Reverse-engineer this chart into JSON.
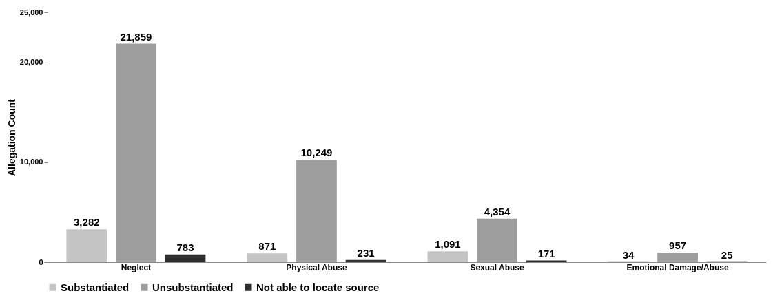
{
  "chart_data": {
    "type": "bar",
    "ylabel": "Allegation Count",
    "categories": [
      "Neglect",
      "Physical Abuse",
      "Sexual Abuse",
      "Emotional Damage/Abuse"
    ],
    "series": [
      {
        "name": "Substantiated",
        "color": "#c4c4c4",
        "values": [
          3282,
          871,
          1091,
          34
        ],
        "value_labels": [
          "3,282",
          "871",
          "1,091",
          "34"
        ]
      },
      {
        "name": "Unsubstantiated",
        "color": "#9e9e9e",
        "values": [
          21859,
          10249,
          4354,
          957
        ],
        "value_labels": [
          "21,859",
          "10,249",
          "4,354",
          "957"
        ]
      },
      {
        "name": "Not able to locate source",
        "color": "#2e2e2e",
        "values": [
          783,
          231,
          171,
          25
        ],
        "value_labels": [
          "783",
          "231",
          "171",
          "25"
        ]
      }
    ],
    "ylim": [
      0,
      25000
    ],
    "yticks": [
      0,
      {
        "value": 10000,
        "label": "10,000"
      },
      {
        "value": 20000,
        "label": "20,000"
      },
      {
        "value": 25000,
        "label": "25,000"
      }
    ],
    "legend": "bottom"
  }
}
